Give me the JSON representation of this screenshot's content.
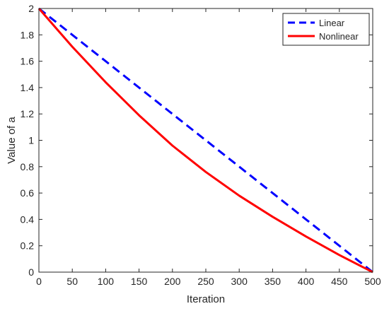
{
  "chart_data": {
    "type": "line",
    "title": "",
    "xlabel": "Iteration",
    "ylabel": "Value of a",
    "xlim": [
      0,
      500
    ],
    "ylim": [
      0,
      2
    ],
    "xticks": [
      0,
      50,
      100,
      150,
      200,
      250,
      300,
      350,
      400,
      450,
      500
    ],
    "yticks": [
      0,
      0.2,
      0.4,
      0.6,
      0.8,
      1,
      1.2,
      1.4,
      1.6,
      1.8,
      2
    ],
    "grid": false,
    "legend_position": "top-right",
    "x": [
      0,
      50,
      100,
      150,
      200,
      250,
      300,
      350,
      400,
      450,
      500
    ],
    "series": [
      {
        "name": "Linear",
        "color": "#0000ff",
        "line_style": "dashed",
        "values": [
          2.0,
          1.8,
          1.6,
          1.4,
          1.2,
          1.0,
          0.8,
          0.6,
          0.4,
          0.2,
          0.0
        ]
      },
      {
        "name": "Nonlinear",
        "color": "#ff0000",
        "line_style": "solid",
        "values": [
          2.0,
          1.71,
          1.44,
          1.19,
          0.96,
          0.76,
          0.58,
          0.42,
          0.27,
          0.13,
          0.0
        ]
      }
    ]
  }
}
